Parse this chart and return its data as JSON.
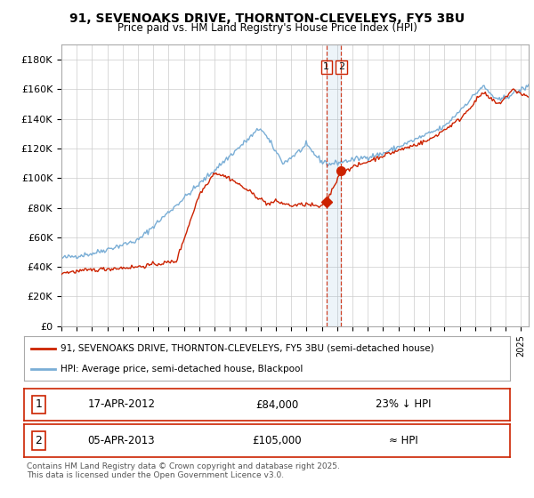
{
  "title": "91, SEVENOAKS DRIVE, THORNTON-CLEVELEYS, FY5 3BU",
  "subtitle": "Price paid vs. HM Land Registry's House Price Index (HPI)",
  "ylim": [
    0,
    190000
  ],
  "yticks": [
    0,
    20000,
    40000,
    60000,
    80000,
    100000,
    120000,
    140000,
    160000,
    180000
  ],
  "ytick_labels": [
    "£0",
    "£20K",
    "£40K",
    "£60K",
    "£80K",
    "£100K",
    "£120K",
    "£140K",
    "£160K",
    "£180K"
  ],
  "hpi_color": "#7aaed6",
  "price_color": "#cc2200",
  "annotation1_date": 2012.3,
  "annotation2_date": 2013.27,
  "annotation1_price": 84000,
  "annotation2_price": 105000,
  "legend_label1": "91, SEVENOAKS DRIVE, THORNTON-CLEVELEYS, FY5 3BU (semi-detached house)",
  "legend_label2": "HPI: Average price, semi-detached house, Blackpool",
  "table_row1": [
    "1",
    "17-APR-2012",
    "£84,000",
    "23% ↓ HPI"
  ],
  "table_row2": [
    "2",
    "05-APR-2013",
    "£105,000",
    "≈ HPI"
  ],
  "footer": "Contains HM Land Registry data © Crown copyright and database right 2025.\nThis data is licensed under the Open Government Licence v3.0.",
  "background_color": "#ffffff",
  "grid_color": "#cccccc"
}
